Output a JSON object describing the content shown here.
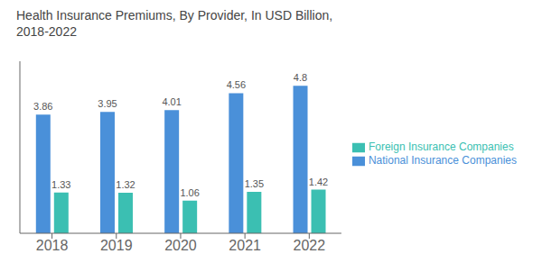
{
  "chart_data": {
    "type": "bar",
    "title": "Health Insurance Premiums, By Provider, In USD Billion,\n2018-2022",
    "categories": [
      "2018",
      "2019",
      "2020",
      "2021",
      "2022"
    ],
    "series": [
      {
        "name": "National Insurance Companies",
        "color": "#4A90D9",
        "values": [
          3.86,
          3.95,
          4.01,
          4.56,
          4.8
        ]
      },
      {
        "name": "Foreign Insurance Companies",
        "color": "#3BBFB2",
        "values": [
          1.33,
          1.32,
          1.06,
          1.35,
          1.42
        ]
      }
    ],
    "ylim": [
      0,
      5.6
    ],
    "grid": false,
    "legend": "right",
    "data_labels": true,
    "tick_labels": "x"
  }
}
